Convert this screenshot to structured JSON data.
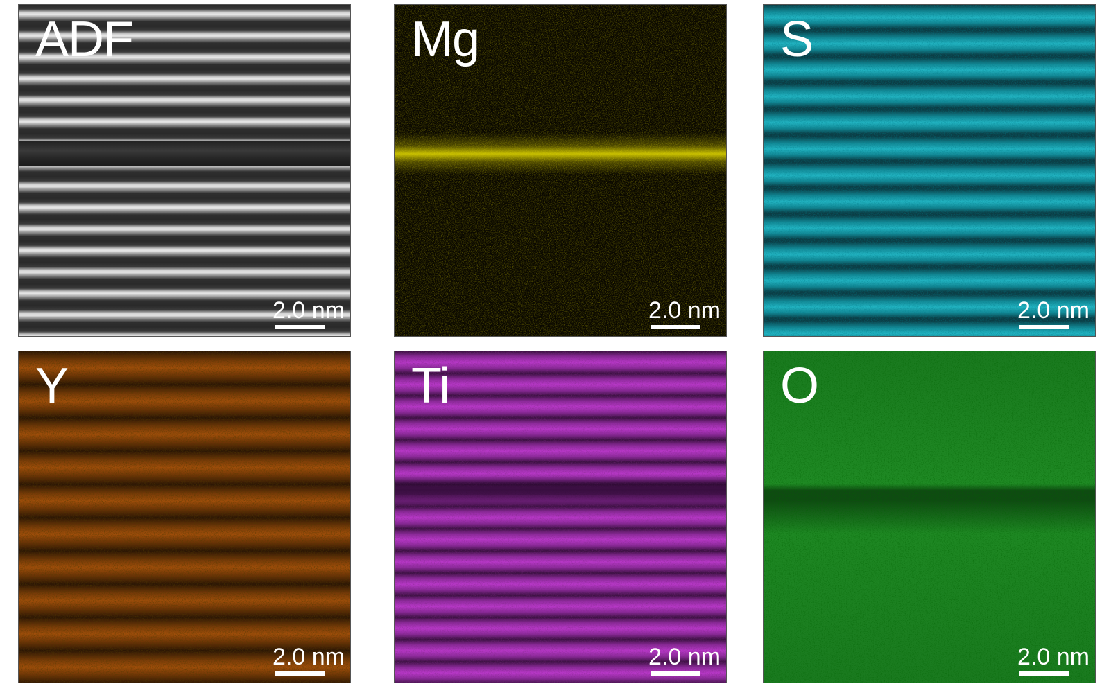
{
  "panels": [
    {
      "id": "adf",
      "label": "ADF",
      "scale": "2.0 nm"
    },
    {
      "id": "mg",
      "label": "Mg",
      "scale": "2.0 nm"
    },
    {
      "id": "s",
      "label": "S",
      "scale": "2.0 nm"
    },
    {
      "id": "y",
      "label": "Y",
      "scale": "2.0 nm"
    },
    {
      "id": "ti",
      "label": "Ti",
      "scale": "2.0 nm"
    },
    {
      "id": "o",
      "label": "O",
      "scale": "2.0 nm"
    }
  ],
  "colors": {
    "adf": "#cfcfcf",
    "mg": "#e6dc00",
    "s": "#22b4c2",
    "y": "#a04e0a",
    "ti": "#b838c8",
    "o": "#1f8a24"
  }
}
